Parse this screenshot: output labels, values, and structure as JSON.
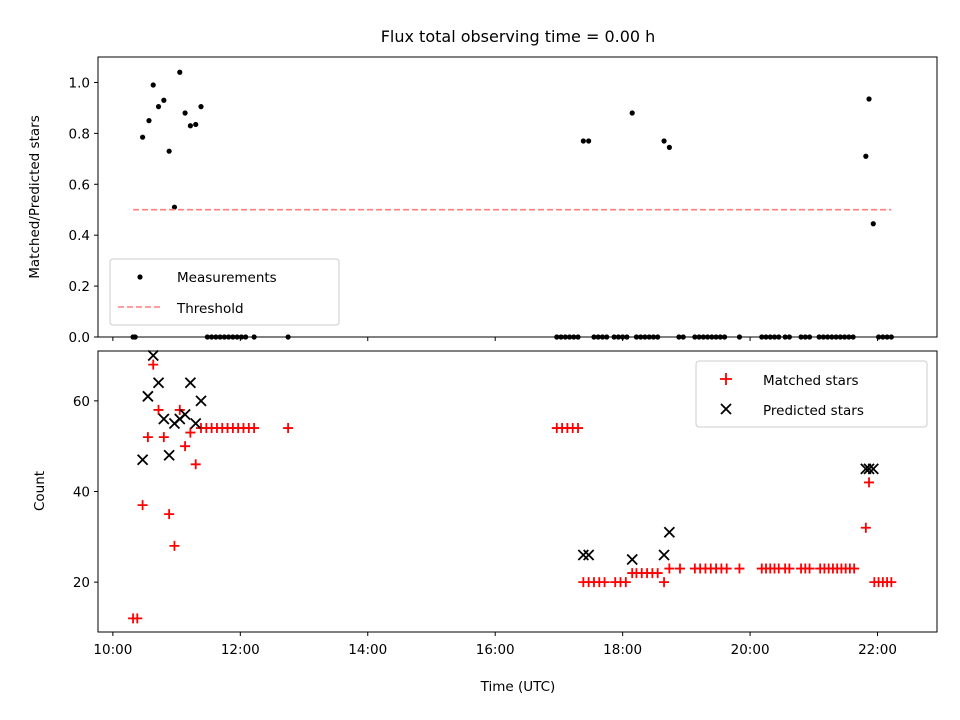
{
  "figure": {
    "title": "Flux total observing time = 0.00 h"
  },
  "chart_data": [
    {
      "type": "scatter",
      "ylabel": "Matched/Predicted stars",
      "xlabel": "",
      "xlim": [
        "09:46",
        "22:56"
      ],
      "ylim": [
        0,
        1.1
      ],
      "x_ticks": [
        "10:00",
        "12:00",
        "14:00",
        "16:00",
        "18:00",
        "20:00",
        "22:00"
      ],
      "y_ticks": [
        "0.0",
        "0.2",
        "0.4",
        "0.6",
        "0.8",
        "1.0"
      ],
      "grid": false,
      "legend": {
        "position": "bottom-left",
        "entries": [
          "Measurements",
          "Threshold"
        ]
      },
      "colors": {
        "Measurements": "#000000",
        "Threshold": "#ff7f7f"
      },
      "series": [
        {
          "name": "Measurements",
          "marker": "dot",
          "points": [
            [
              "10:19",
              0.0
            ],
            [
              "10:21",
              0.0
            ],
            [
              "10:28",
              0.785
            ],
            [
              "10:34",
              0.85
            ],
            [
              "10:38",
              0.99
            ],
            [
              "10:43",
              0.905
            ],
            [
              "10:48",
              0.93
            ],
            [
              "10:53",
              0.73
            ],
            [
              "10:58",
              0.51
            ],
            [
              "11:03",
              1.04
            ],
            [
              "11:08",
              0.88
            ],
            [
              "11:13",
              0.83
            ],
            [
              "11:18",
              0.835
            ],
            [
              "11:23",
              0.905
            ],
            [
              "11:29",
              0.0
            ],
            [
              "11:33",
              0.0
            ],
            [
              "11:37",
              0.0
            ],
            [
              "11:41",
              0.0
            ],
            [
              "11:45",
              0.0
            ],
            [
              "11:49",
              0.0
            ],
            [
              "11:53",
              0.0
            ],
            [
              "11:57",
              0.0
            ],
            [
              "12:01",
              0.0
            ],
            [
              "12:05",
              0.0
            ],
            [
              "12:13",
              0.0
            ],
            [
              "12:45",
              0.0
            ],
            [
              "16:58",
              0.0
            ],
            [
              "17:02",
              0.0
            ],
            [
              "17:06",
              0.0
            ],
            [
              "17:10",
              0.0
            ],
            [
              "17:14",
              0.0
            ],
            [
              "17:18",
              0.0
            ],
            [
              "17:23",
              0.77
            ],
            [
              "17:28",
              0.77
            ],
            [
              "17:33",
              0.0
            ],
            [
              "17:37",
              0.0
            ],
            [
              "17:41",
              0.0
            ],
            [
              "17:45",
              0.0
            ],
            [
              "17:52",
              0.0
            ],
            [
              "17:56",
              0.0
            ],
            [
              "18:00",
              0.0
            ],
            [
              "18:04",
              0.0
            ],
            [
              "18:09",
              0.88
            ],
            [
              "18:13",
              0.0
            ],
            [
              "18:17",
              0.0
            ],
            [
              "18:21",
              0.0
            ],
            [
              "18:25",
              0.0
            ],
            [
              "18:29",
              0.0
            ],
            [
              "18:33",
              0.0
            ],
            [
              "18:39",
              0.77
            ],
            [
              "18:44",
              0.745
            ],
            [
              "18:53",
              0.0
            ],
            [
              "18:57",
              0.0
            ],
            [
              "19:08",
              0.0
            ],
            [
              "19:12",
              0.0
            ],
            [
              "19:16",
              0.0
            ],
            [
              "19:20",
              0.0
            ],
            [
              "19:24",
              0.0
            ],
            [
              "19:28",
              0.0
            ],
            [
              "19:32",
              0.0
            ],
            [
              "19:36",
              0.0
            ],
            [
              "19:50",
              0.0
            ],
            [
              "20:11",
              0.0
            ],
            [
              "20:15",
              0.0
            ],
            [
              "20:19",
              0.0
            ],
            [
              "20:23",
              0.0
            ],
            [
              "20:27",
              0.0
            ],
            [
              "20:33",
              0.0
            ],
            [
              "20:37",
              0.0
            ],
            [
              "20:48",
              0.0
            ],
            [
              "20:52",
              0.0
            ],
            [
              "20:56",
              0.0
            ],
            [
              "21:05",
              0.0
            ],
            [
              "21:09",
              0.0
            ],
            [
              "21:13",
              0.0
            ],
            [
              "21:17",
              0.0
            ],
            [
              "21:21",
              0.0
            ],
            [
              "21:25",
              0.0
            ],
            [
              "21:29",
              0.0
            ],
            [
              "21:33",
              0.0
            ],
            [
              "21:37",
              0.0
            ],
            [
              "21:49",
              0.71
            ],
            [
              "21:52",
              0.935
            ],
            [
              "21:56",
              0.445
            ],
            [
              "22:01",
              0.0
            ],
            [
              "22:05",
              0.0
            ],
            [
              "22:09",
              0.0
            ],
            [
              "22:13",
              0.0
            ]
          ]
        },
        {
          "name": "Threshold",
          "style": "dashed",
          "points": [
            [
              "10:19",
              0.5
            ],
            [
              "22:13",
              0.5
            ]
          ]
        }
      ]
    },
    {
      "type": "scatter",
      "ylabel": "Count",
      "xlabel": "Time (UTC)",
      "xlim": [
        "09:46",
        "22:56"
      ],
      "ylim": [
        9,
        71
      ],
      "x_ticks": [
        "10:00",
        "12:00",
        "14:00",
        "16:00",
        "18:00",
        "20:00",
        "22:00"
      ],
      "y_ticks": [
        "20",
        "40",
        "60"
      ],
      "grid": false,
      "legend": {
        "position": "top-right",
        "entries": [
          "Matched stars",
          "Predicted stars"
        ]
      },
      "colors": {
        "Matched stars": "#ff0000",
        "Predicted stars": "#000000"
      },
      "series": [
        {
          "name": "Matched stars",
          "marker": "plus",
          "points": [
            [
              "10:19",
              12
            ],
            [
              "10:23",
              12
            ],
            [
              "10:28",
              37
            ],
            [
              "10:33",
              52
            ],
            [
              "10:38",
              68
            ],
            [
              "10:43",
              58
            ],
            [
              "10:48",
              52
            ],
            [
              "10:53",
              35
            ],
            [
              "10:58",
              28
            ],
            [
              "11:03",
              58
            ],
            [
              "11:08",
              50
            ],
            [
              "11:13",
              53
            ],
            [
              "11:18",
              46
            ],
            [
              "11:23",
              54
            ],
            [
              "11:28",
              54
            ],
            [
              "11:33",
              54
            ],
            [
              "11:38",
              54
            ],
            [
              "11:43",
              54
            ],
            [
              "11:48",
              54
            ],
            [
              "11:53",
              54
            ],
            [
              "11:58",
              54
            ],
            [
              "12:03",
              54
            ],
            [
              "12:08",
              54
            ],
            [
              "12:13",
              54
            ],
            [
              "12:45",
              54
            ],
            [
              "16:58",
              54
            ],
            [
              "17:03",
              54
            ],
            [
              "17:08",
              54
            ],
            [
              "17:13",
              54
            ],
            [
              "17:18",
              54
            ],
            [
              "17:23",
              20
            ],
            [
              "17:28",
              20
            ],
            [
              "17:33",
              20
            ],
            [
              "17:38",
              20
            ],
            [
              "17:43",
              20
            ],
            [
              "17:53",
              20
            ],
            [
              "17:58",
              20
            ],
            [
              "18:03",
              20
            ],
            [
              "18:09",
              22
            ],
            [
              "18:13",
              22
            ],
            [
              "18:18",
              22
            ],
            [
              "18:23",
              22
            ],
            [
              "18:28",
              22
            ],
            [
              "18:33",
              22
            ],
            [
              "18:39",
              20
            ],
            [
              "18:44",
              23
            ],
            [
              "18:54",
              23
            ],
            [
              "19:08",
              23
            ],
            [
              "19:13",
              23
            ],
            [
              "19:18",
              23
            ],
            [
              "19:23",
              23
            ],
            [
              "19:28",
              23
            ],
            [
              "19:33",
              23
            ],
            [
              "19:38",
              23
            ],
            [
              "19:50",
              23
            ],
            [
              "20:11",
              23
            ],
            [
              "20:15",
              23
            ],
            [
              "20:19",
              23
            ],
            [
              "20:23",
              23
            ],
            [
              "20:27",
              23
            ],
            [
              "20:33",
              23
            ],
            [
              "20:37",
              23
            ],
            [
              "20:48",
              23
            ],
            [
              "20:52",
              23
            ],
            [
              "20:56",
              23
            ],
            [
              "21:06",
              23
            ],
            [
              "21:10",
              23
            ],
            [
              "21:14",
              23
            ],
            [
              "21:18",
              23
            ],
            [
              "21:22",
              23
            ],
            [
              "21:26",
              23
            ],
            [
              "21:30",
              23
            ],
            [
              "21:34",
              23
            ],
            [
              "21:38",
              23
            ],
            [
              "21:49",
              32
            ],
            [
              "21:52",
              42
            ],
            [
              "21:57",
              20
            ],
            [
              "22:01",
              20
            ],
            [
              "22:05",
              20
            ],
            [
              "22:09",
              20
            ],
            [
              "22:13",
              20
            ]
          ]
        },
        {
          "name": "Predicted stars",
          "marker": "x",
          "points": [
            [
              "10:28",
              47
            ],
            [
              "10:33",
              61
            ],
            [
              "10:38",
              70
            ],
            [
              "10:43",
              64
            ],
            [
              "10:48",
              56
            ],
            [
              "10:53",
              48
            ],
            [
              "10:58",
              55
            ],
            [
              "11:03",
              56
            ],
            [
              "11:08",
              57
            ],
            [
              "11:13",
              64
            ],
            [
              "11:18",
              55
            ],
            [
              "11:23",
              60
            ],
            [
              "17:23",
              26
            ],
            [
              "17:28",
              26
            ],
            [
              "18:09",
              25
            ],
            [
              "18:39",
              26
            ],
            [
              "18:44",
              31
            ],
            [
              "21:49",
              45
            ],
            [
              "21:52",
              45
            ],
            [
              "21:56",
              45
            ]
          ]
        }
      ]
    }
  ]
}
